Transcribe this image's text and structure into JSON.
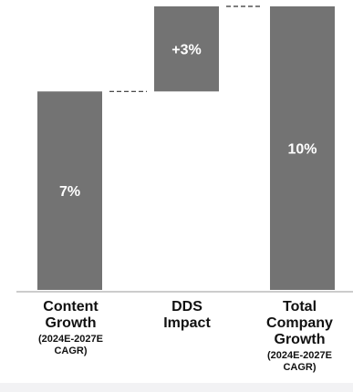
{
  "chart_data": {
    "type": "waterfall",
    "categories": [
      {
        "main": "Content\nGrowth",
        "sub": "(2024E-2027E\nCAGR)"
      },
      {
        "main": "DDS\nImpact",
        "sub": ""
      },
      {
        "main": "Total\nCompany\nGrowth",
        "sub": "(2024E-2027E\nCAGR)"
      }
    ],
    "steps": [
      {
        "start": 0,
        "end": 7,
        "label": "7%"
      },
      {
        "start": 7,
        "end": 10,
        "label": "+3%"
      },
      {
        "start": 0,
        "end": 10,
        "label": "10%"
      }
    ],
    "ylim": [
      0,
      10
    ],
    "grid": false,
    "connectors": "dashed",
    "bar_color": "#737373",
    "label_color": "#ffffff",
    "axis_color": "#999999"
  }
}
